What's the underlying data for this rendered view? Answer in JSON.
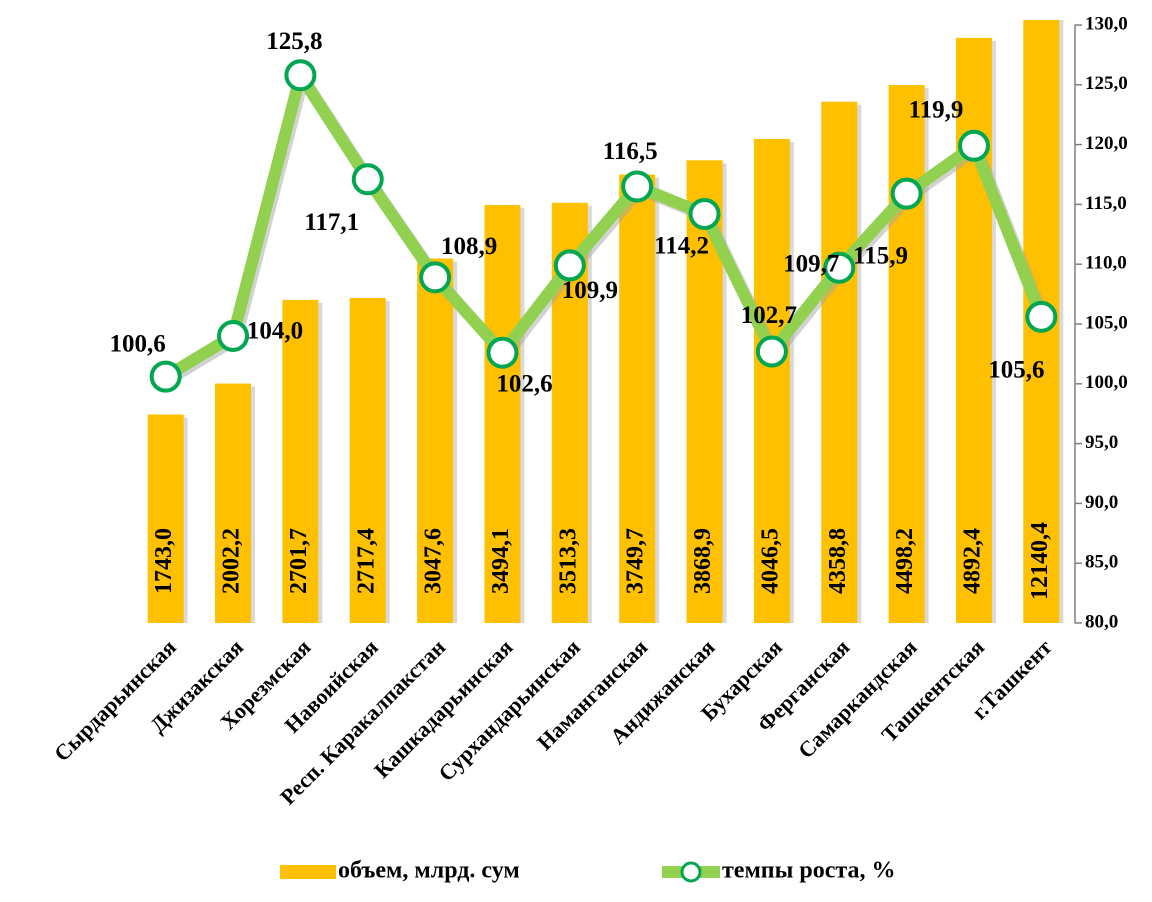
{
  "chart_data": {
    "type": "bar-line",
    "categories": [
      "Сырдарьинская",
      "Джизакская",
      "Хорезмская",
      "Навоийская",
      "Респ. Каракалпакстан",
      "Кашкадарьинская",
      "Сурхандарьинская",
      "Наманганская",
      "Андижанская",
      "Бухарская",
      "Ферганская",
      "Самаркандская",
      "Ташкентская",
      "г.Ташкент"
    ],
    "ylim": [
      0,
      5000
    ],
    "y2lim": [
      80,
      130
    ],
    "y2ticks": [
      {
        "value": 80,
        "label": "80,0"
      },
      {
        "value": 85,
        "label": "85,0"
      },
      {
        "value": 90,
        "label": "90,0"
      },
      {
        "value": 95,
        "label": "95,0"
      },
      {
        "value": 100,
        "label": "100,0"
      },
      {
        "value": 105,
        "label": "105,0"
      },
      {
        "value": 110,
        "label": "110,0"
      },
      {
        "value": 115,
        "label": "115,0"
      },
      {
        "value": 120,
        "label": "120,0"
      },
      {
        "value": 125,
        "label": "125,0"
      },
      {
        "value": 130,
        "label": "130,0"
      }
    ],
    "series": [
      {
        "name": "объем, млрд. сум",
        "type": "bar",
        "color": "#ffc000",
        "values": [
          1743.0,
          2002.2,
          2701.7,
          2717.4,
          3047.6,
          3494.1,
          3513.3,
          3749.7,
          3868.9,
          4046.5,
          4358.8,
          4498.2,
          4892.4,
          12140.4
        ],
        "value_labels": [
          "1743,0",
          "2002,2",
          "2701,7",
          "2717,4",
          "3047,6",
          "3494,1",
          "3513,3",
          "3749,7",
          "3868,9",
          "4046,5",
          "4358,8",
          "4498,2",
          "4892,4",
          "12140,4"
        ]
      },
      {
        "name": "темпы роста, %",
        "type": "line",
        "axis": "y2",
        "color": "#92d050",
        "values": [
          100.6,
          104.0,
          125.8,
          117.1,
          108.9,
          102.6,
          109.9,
          116.5,
          114.2,
          102.7,
          109.7,
          115.9,
          119.9,
          105.6
        ],
        "value_labels": [
          "100,6",
          "104,0",
          "125,8",
          "117,1",
          "108,9",
          "102,6",
          "109,9",
          "116,5",
          "114,2",
          "102,7",
          "109,7",
          "115,9",
          "119,9",
          "105,6"
        ]
      }
    ]
  }
}
